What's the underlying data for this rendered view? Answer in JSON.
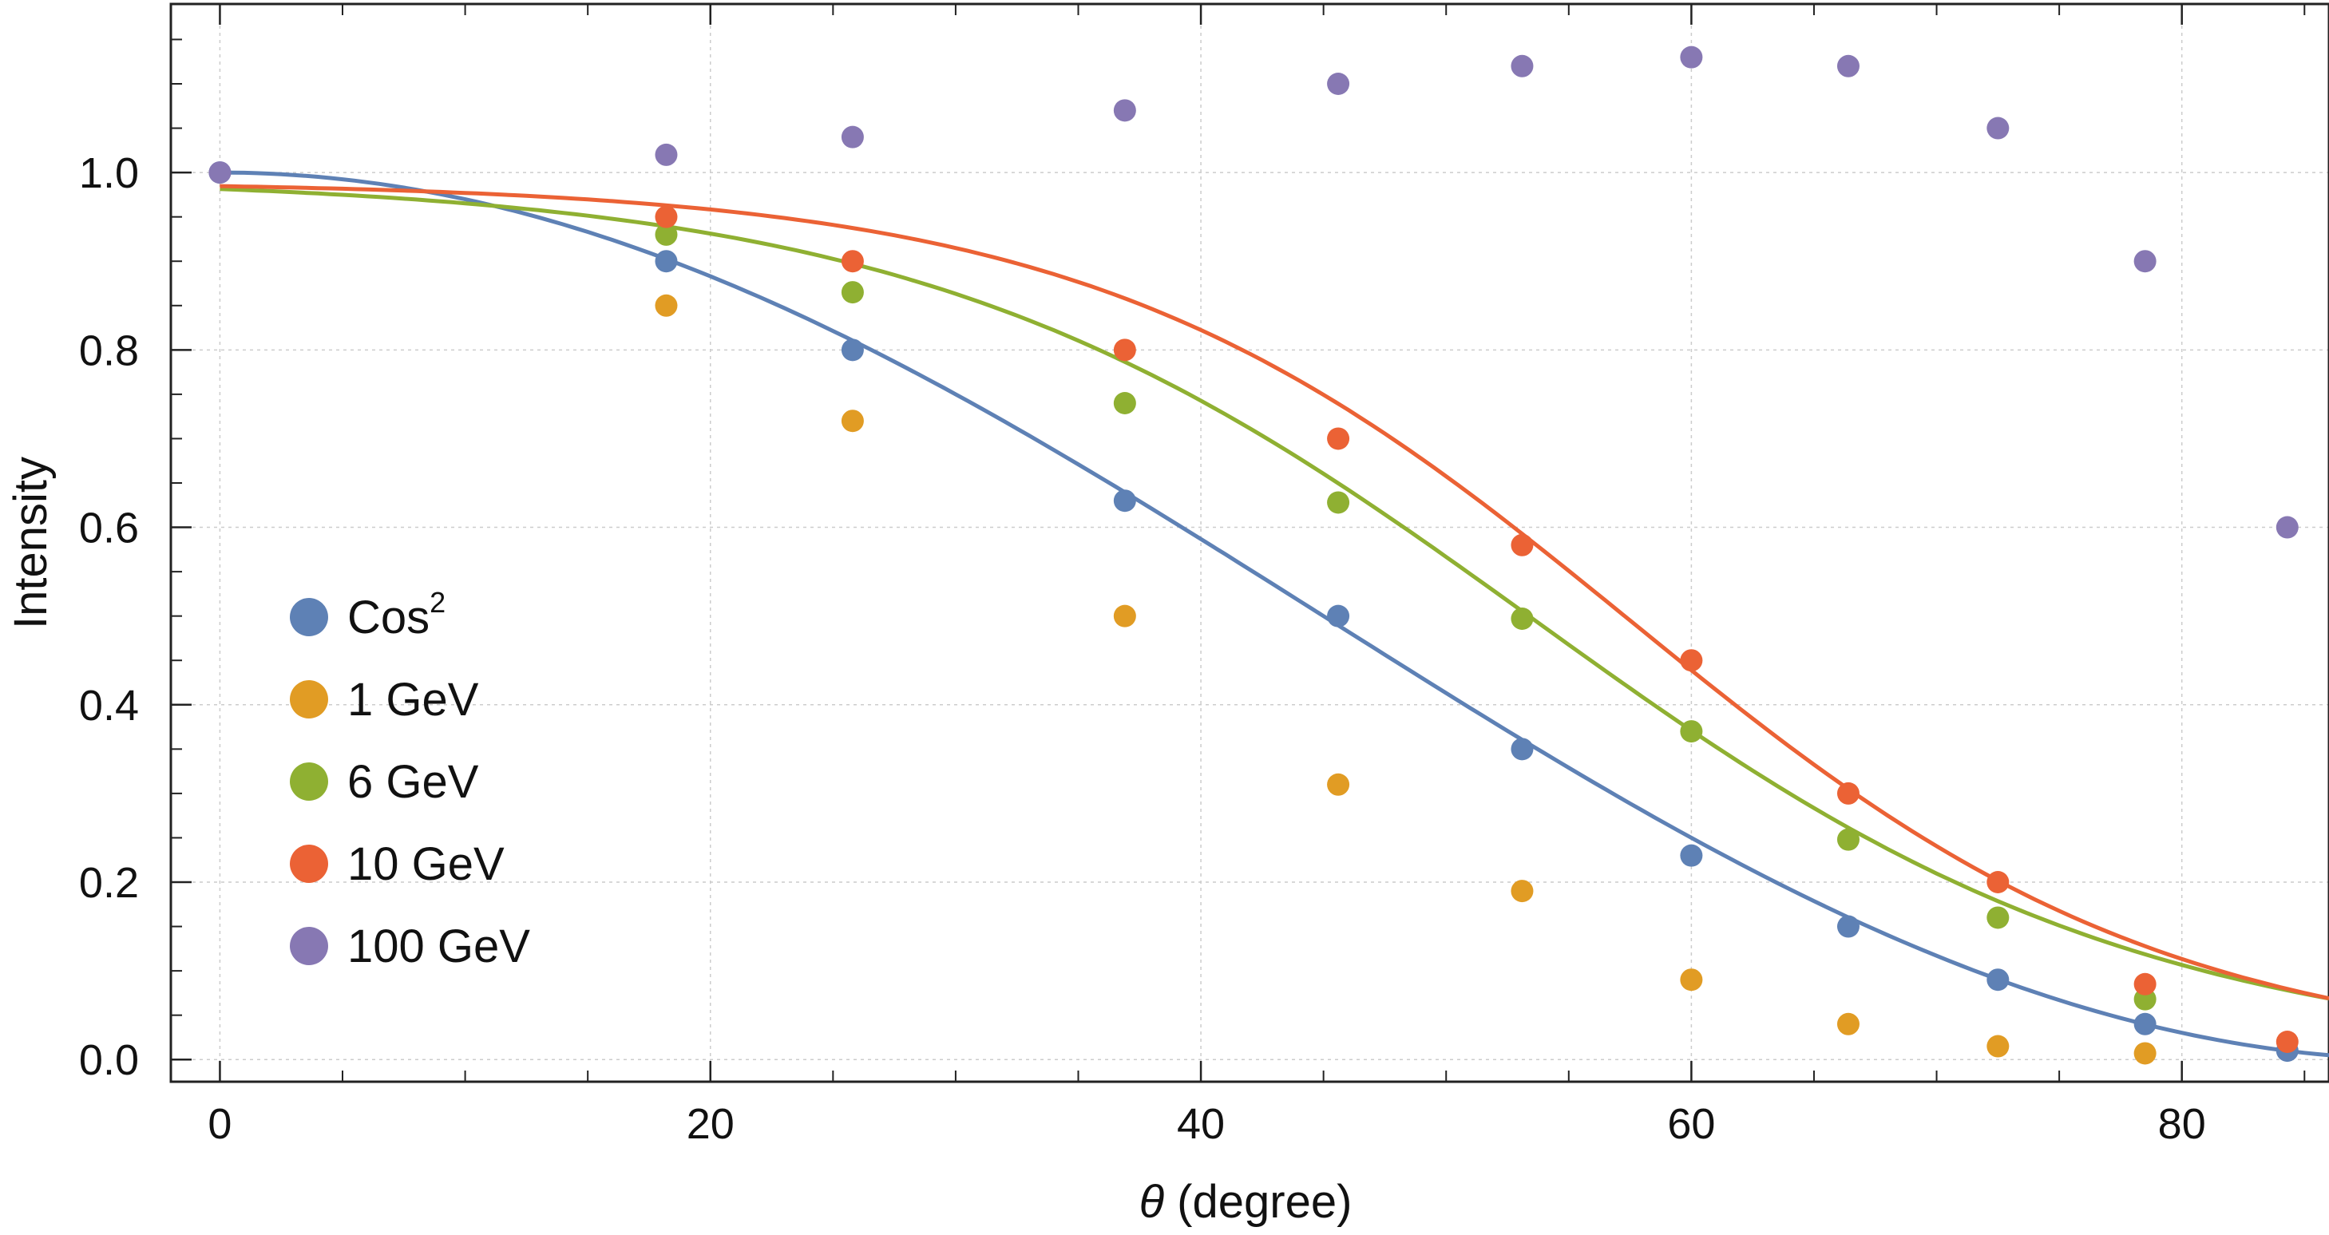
{
  "chart_data": {
    "type": "scatter",
    "title": "",
    "xlabel_symbol": "θ",
    "xlabel_text": " (degree)",
    "ylabel": "Intensity",
    "xlim": [
      -2,
      86
    ],
    "ylim": [
      -0.025,
      1.19
    ],
    "x_ticks": [
      "0",
      "20",
      "40",
      "60",
      "80"
    ],
    "y_ticks": [
      "0.0",
      "0.2",
      "0.4",
      "0.6",
      "0.8",
      "1.0"
    ],
    "grid": true,
    "legend_position": "left-middle",
    "x": [
      0,
      18.2,
      25.8,
      36.9,
      45.6,
      53.1,
      60,
      66.4,
      72.5,
      78.5,
      84.3
    ],
    "series": [
      {
        "name": "Cos",
        "sup": "2",
        "color": "#5e81b5",
        "values": [
          1.0,
          0.9,
          0.8,
          0.63,
          0.5,
          0.35,
          0.23,
          0.15,
          0.09,
          0.04,
          0.01
        ],
        "curve": {
          "kind": "cos2"
        }
      },
      {
        "name": "1 GeV",
        "color": "#e19c24",
        "values": [
          null,
          0.85,
          0.72,
          0.5,
          0.31,
          0.19,
          0.09,
          0.04,
          0.015,
          0.007,
          null
        ]
      },
      {
        "name": "6 GeV",
        "color": "#8fb032",
        "values": [
          null,
          0.93,
          0.865,
          0.74,
          0.628,
          0.497,
          0.37,
          0.248,
          0.16,
          0.068,
          null
        ],
        "curve": {
          "kind": "logistic",
          "a": 0.995,
          "c": 53.5,
          "w": 12.5
        }
      },
      {
        "name": "10 GeV",
        "color": "#eb6235",
        "values": [
          null,
          0.95,
          0.9,
          0.8,
          0.7,
          0.58,
          0.45,
          0.3,
          0.2,
          0.085,
          0.02
        ],
        "curve": {
          "kind": "logistic",
          "a": 0.99,
          "c": 57.5,
          "w": 11.0
        }
      },
      {
        "name": "100 GeV",
        "color": "#8778b3",
        "values": [
          1.0,
          1.02,
          1.04,
          1.07,
          1.1,
          1.12,
          1.13,
          1.12,
          1.05,
          0.9,
          0.6
        ]
      }
    ]
  }
}
